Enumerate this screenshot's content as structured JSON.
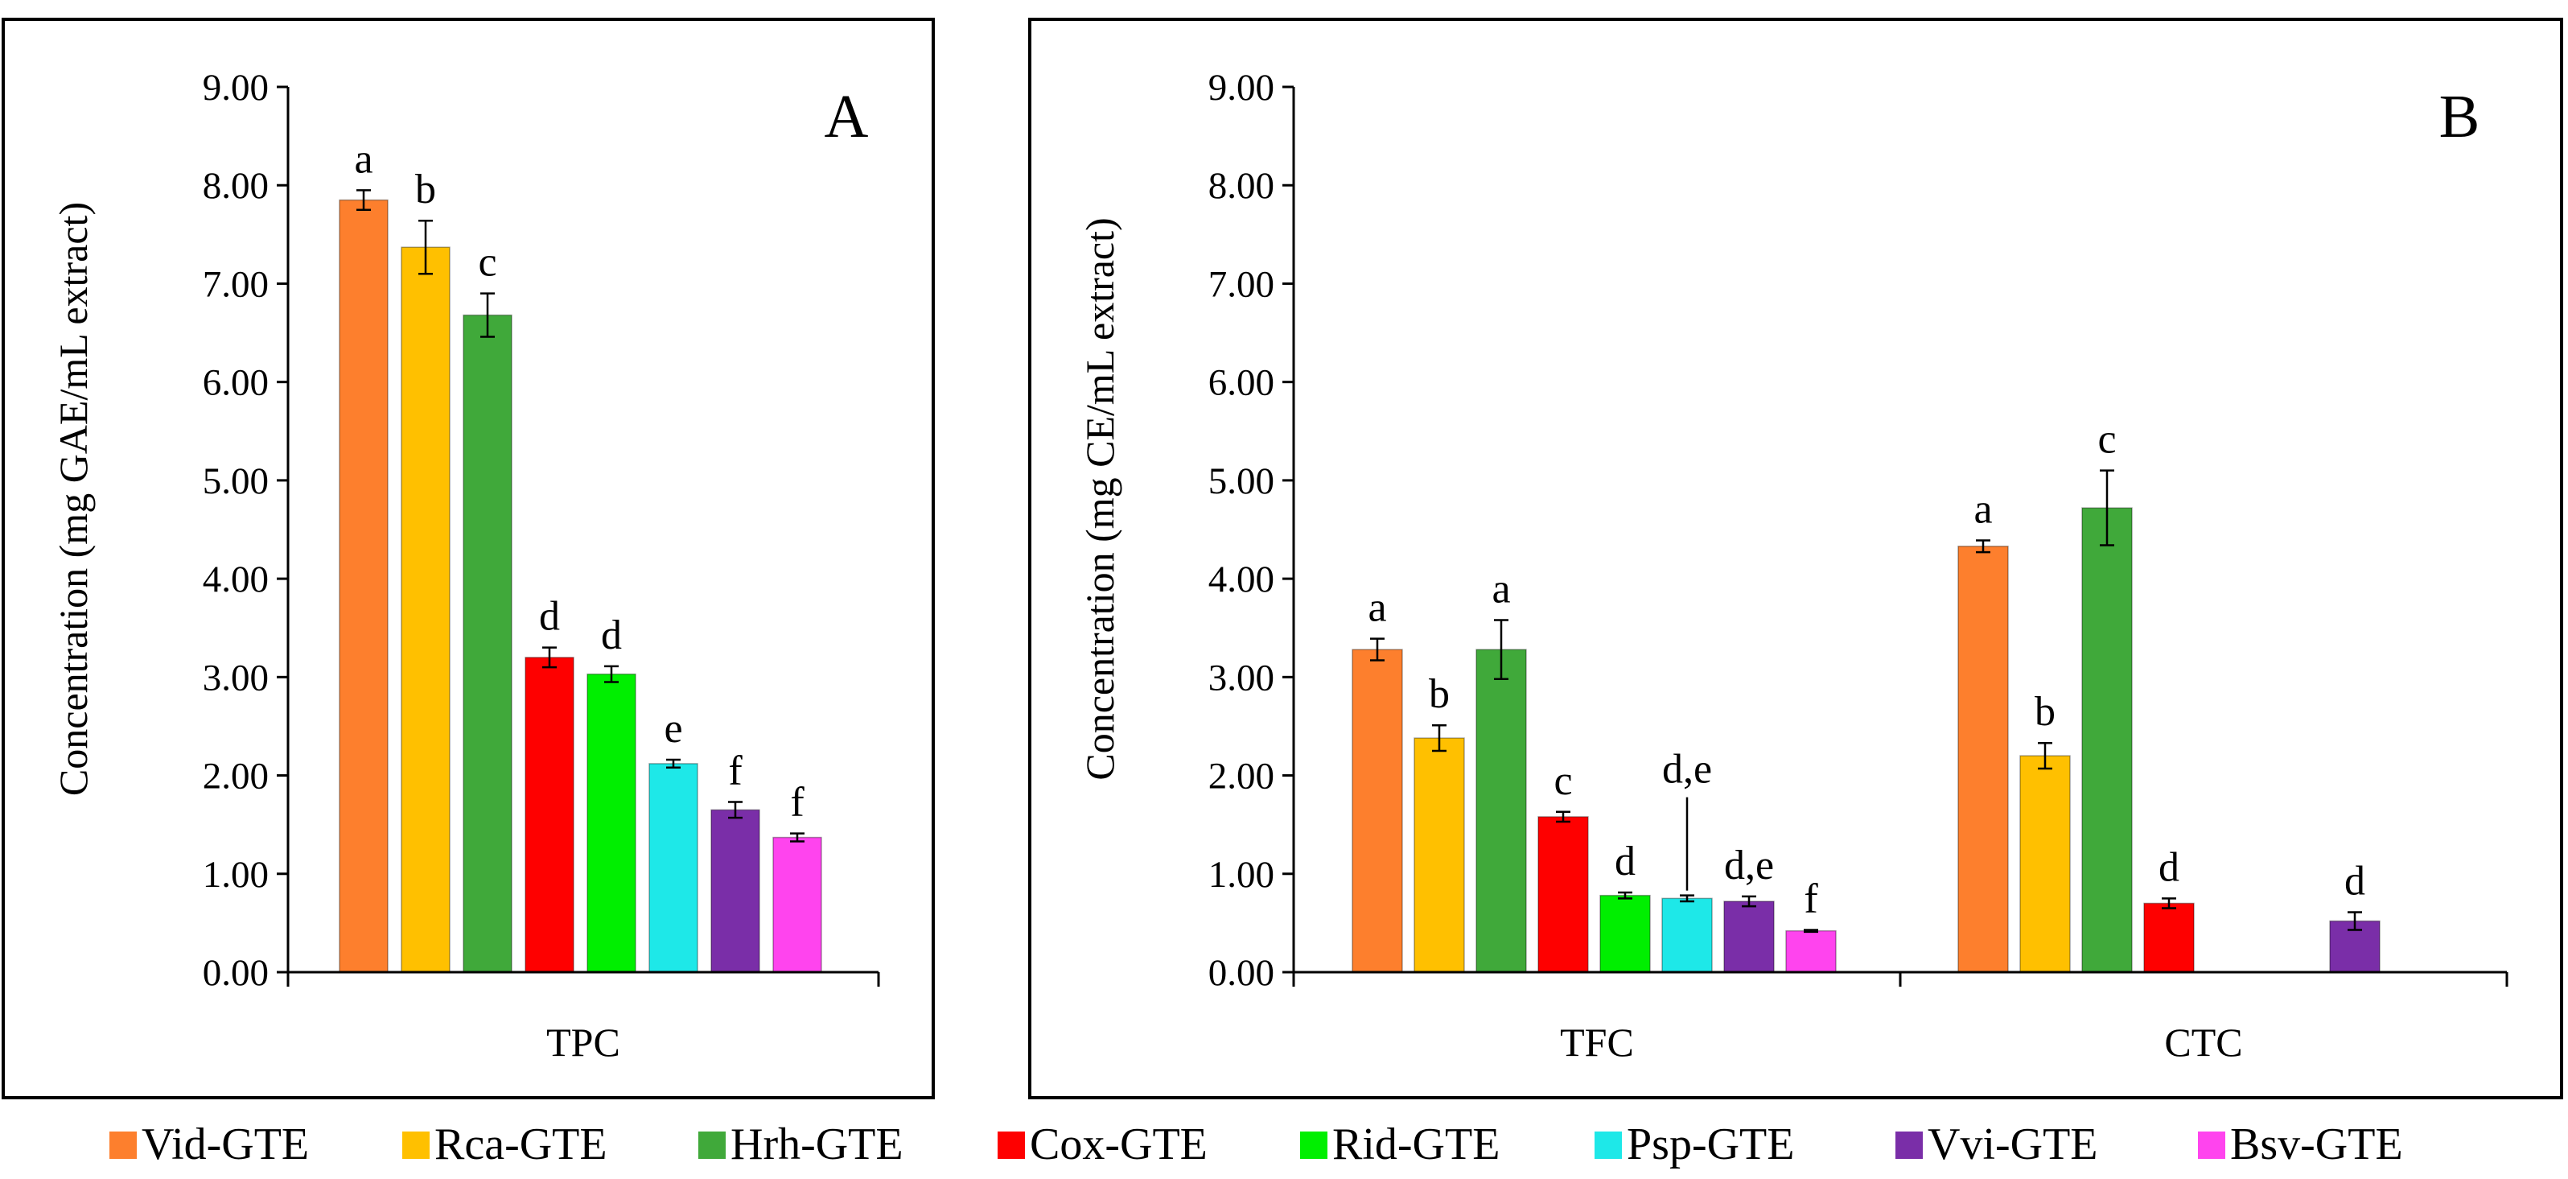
{
  "legend": {
    "items": [
      {
        "label": "Vid-GTE",
        "color": "#fd7f2d"
      },
      {
        "label": "Rca-GTE",
        "color": "#ffc000"
      },
      {
        "label": "Hrh-GTE",
        "color": "#40a93a"
      },
      {
        "label": "Cox-GTE",
        "color": "#fe0000"
      },
      {
        "label": "Rid-GTE",
        "color": "#00ef00"
      },
      {
        "label": "Psp-GTE",
        "color": "#1ee8e8"
      },
      {
        "label": "Vvi-GTE",
        "color": "#7a2ea8"
      },
      {
        "label": "Bsv-GTE",
        "color": "#ff44ee"
      }
    ]
  },
  "chart_data": [
    {
      "type": "bar",
      "panel": "A",
      "ylabel": "Concentration (mg GAE/mL extract)",
      "ylim": [
        0,
        9
      ],
      "yticks": [
        "0.00",
        "1.00",
        "2.00",
        "3.00",
        "4.00",
        "5.00",
        "6.00",
        "7.00",
        "8.00",
        "9.00"
      ],
      "categories": [
        "TPC"
      ],
      "series": [
        {
          "name": "Vid-GTE",
          "values": [
            7.85
          ],
          "errors": [
            0.1
          ],
          "letters": [
            "a"
          ]
        },
        {
          "name": "Rca-GTE",
          "values": [
            7.37
          ],
          "errors": [
            0.27
          ],
          "letters": [
            "b"
          ]
        },
        {
          "name": "Hrh-GTE",
          "values": [
            6.68
          ],
          "errors": [
            0.22
          ],
          "letters": [
            "c"
          ]
        },
        {
          "name": "Cox-GTE",
          "values": [
            3.2
          ],
          "errors": [
            0.1
          ],
          "letters": [
            "d"
          ]
        },
        {
          "name": "Rid-GTE",
          "values": [
            3.03
          ],
          "errors": [
            0.08
          ],
          "letters": [
            "d"
          ]
        },
        {
          "name": "Psp-GTE",
          "values": [
            2.12
          ],
          "errors": [
            0.04
          ],
          "letters": [
            "e"
          ]
        },
        {
          "name": "Vvi-GTE",
          "values": [
            1.65
          ],
          "errors": [
            0.08
          ],
          "letters": [
            "f"
          ]
        },
        {
          "name": "Bsv-GTE",
          "values": [
            1.37
          ],
          "errors": [
            0.04
          ],
          "letters": [
            "f"
          ]
        }
      ]
    },
    {
      "type": "bar",
      "panel": "B",
      "ylabel": "Concentration (mg CE/mL extract)",
      "ylim": [
        0,
        9
      ],
      "yticks": [
        "0.00",
        "1.00",
        "2.00",
        "3.00",
        "4.00",
        "5.00",
        "6.00",
        "7.00",
        "8.00",
        "9.00"
      ],
      "categories": [
        "TFC",
        "CTC"
      ],
      "series": [
        {
          "name": "Vid-GTE",
          "values": [
            3.28,
            4.33
          ],
          "errors": [
            0.11,
            0.06
          ],
          "letters": [
            "a",
            "a"
          ]
        },
        {
          "name": "Rca-GTE",
          "values": [
            2.38,
            2.2
          ],
          "errors": [
            0.13,
            0.13
          ],
          "letters": [
            "b",
            "b"
          ]
        },
        {
          "name": "Hrh-GTE",
          "values": [
            3.28,
            4.72
          ],
          "errors": [
            0.3,
            0.38
          ],
          "letters": [
            "a",
            "c"
          ]
        },
        {
          "name": "Cox-GTE",
          "values": [
            1.58,
            0.7
          ],
          "errors": [
            0.05,
            0.05
          ],
          "letters": [
            "c",
            "d"
          ]
        },
        {
          "name": "Rid-GTE",
          "values": [
            0.78,
            null
          ],
          "errors": [
            0.03,
            null
          ],
          "letters": [
            "d",
            null
          ]
        },
        {
          "name": "Psp-GTE",
          "values": [
            0.75,
            null
          ],
          "errors": [
            0.03,
            null
          ],
          "letters": [
            "d,e",
            null
          ]
        },
        {
          "name": "Vvi-GTE",
          "values": [
            0.72,
            0.52
          ],
          "errors": [
            0.05,
            0.09
          ],
          "letters": [
            "d,e",
            "d"
          ]
        },
        {
          "name": "Bsv-GTE",
          "values": [
            0.42,
            null
          ],
          "errors": [
            0.01,
            null
          ],
          "letters": [
            "f",
            null
          ]
        }
      ]
    }
  ]
}
